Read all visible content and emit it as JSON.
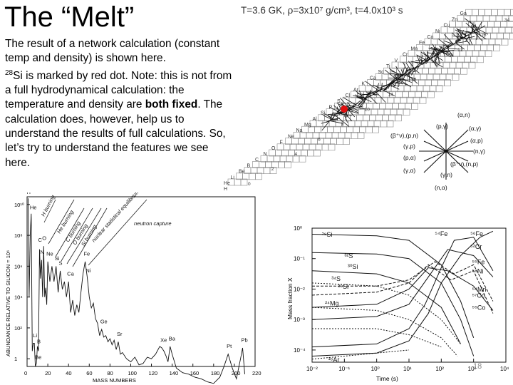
{
  "slide": {
    "title": "The “Melt”",
    "paragraph": {
      "part1": "The result of a network calculation (constant temp and density) is shown here.",
      "iso_mass": "28",
      "part2": "Si is marked by red dot.  Note:  this is not from a full hydrodynamical calculation:  the temperature and density are ",
      "bold1": "both fixed",
      "part3": ".  The calculation does, however, help us to understand the results of full calculations.  So, let’s try to understand the features we see here."
    },
    "slide_number": "18"
  },
  "network_figure": {
    "header": "T=3.6 GK, ρ=3x10⁷ g/cm³, t=4.0x10³ s",
    "element_labels": [
      "Ga",
      "Zn",
      "Cu",
      "Ni",
      "Co",
      "Fe",
      "Mn",
      "Cr",
      "V",
      "Ti",
      "Sc",
      "Ca",
      "K",
      "Ar",
      "Cl",
      "S",
      "P",
      "Si",
      "Al",
      "Mg",
      "Na",
      "Ne",
      "F",
      "O",
      "N",
      "C",
      "B",
      "Be",
      "Li",
      "He",
      "H"
    ],
    "neutron_numbers": [
      "34",
      "26",
      "22",
      "18",
      "16",
      "14",
      "10",
      "8",
      "6",
      "4",
      "2",
      "0"
    ],
    "reaction_legend": [
      "(α,n)",
      "(p,γ)",
      "(α,γ)",
      "(β⁺ν),(p,n)",
      "(α,p)",
      "(γ,p)",
      "(n,γ)",
      "(p,α)",
      "(β⁺ν),(n,p)",
      "(γ,α)",
      "(γ,n)",
      "(n,α)"
    ],
    "highlight_color": "#e01010"
  },
  "abundance_figure": {
    "y_axis_label": "ABUNDANCE RELATIVE TO SILICON = 10⁶",
    "x_axis_label": "MASS    NUMBERS",
    "y_ticks": [
      "10¹⁰",
      "10⁸",
      "10⁶",
      "10⁴",
      "10²",
      "1"
    ],
    "x_ticks": [
      "0",
      "20",
      "40",
      "60",
      "80",
      "100",
      "120",
      "140",
      "160",
      "180",
      "200",
      "220"
    ],
    "process_labels": [
      "H burning",
      "He burning",
      "C burning",
      "O burning",
      "Si burning",
      "nuclear statistical equilibrium",
      "neutron capture"
    ],
    "peak_labels": [
      "H",
      "He",
      "Li",
      "Be",
      "B",
      "C",
      "N",
      "O",
      "Ne",
      "Si",
      "S",
      "Ca",
      "Fe",
      "Ni",
      "Ge",
      "Sr",
      "Xe",
      "Ba",
      "Pt",
      "Pb"
    ]
  },
  "mass_fraction_figure": {
    "y_axis_label": "Mass fraction X",
    "x_axis_label": "Time (s)",
    "y_ticks": [
      "10⁰",
      "10⁻¹",
      "10⁻²",
      "10⁻³",
      "10⁻⁴"
    ],
    "x_ticks": [
      "10⁻²",
      "10⁻¹",
      "10⁰",
      "10¹",
      "10²",
      "10³",
      "10⁴"
    ],
    "curve_labels": [
      "²⁸Si",
      "³²S",
      "³⁶Ar",
      "⁵⁴Fe",
      "⁵⁶Fe",
      "⁵²Cr",
      "⁵⁸Ni",
      "⁵⁵Co",
      "⁵⁴Mn",
      "²⁴Mg",
      "⁵⁵Fe",
      "⁵⁷Co",
      "³⁰Si",
      "³⁴S",
      "²⁹Si"
    ]
  }
}
